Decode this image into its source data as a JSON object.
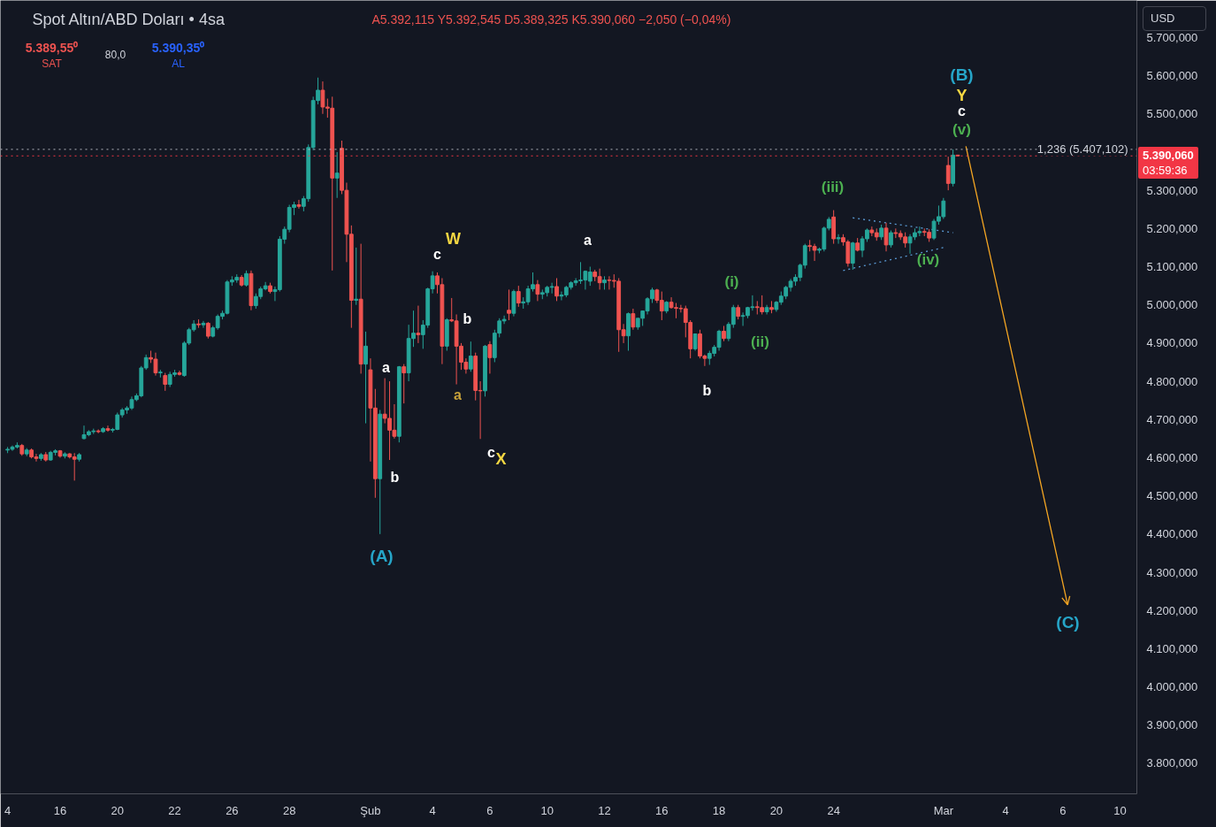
{
  "chart_data": {
    "type": "candlestick",
    "title": "Spot Altın/ABD Doları • 4sa",
    "subtitle": "A5.392,115 Y5.392,545 D5.389,325 K5.390,060 −2,050 (−0,04%)",
    "categories": [
      "4",
      null,
      null,
      null,
      null,
      null,
      null,
      null,
      null,
      null,
      null,
      "16",
      null,
      null,
      null,
      null,
      null,
      null,
      null,
      null,
      null,
      null,
      null,
      "20",
      null,
      null,
      null,
      null,
      null,
      null,
      null,
      null,
      null,
      null,
      null,
      "22",
      null,
      null,
      null,
      null,
      null,
      null,
      null,
      null,
      null,
      null,
      null,
      "26",
      null,
      null,
      null,
      null,
      null,
      null,
      null,
      null,
      null,
      null,
      null,
      "28",
      null,
      null,
      null,
      null,
      null,
      null,
      null,
      null,
      null,
      null,
      null,
      null,
      null,
      null,
      null,
      null,
      "Şub",
      null,
      null,
      null,
      null,
      null,
      null,
      null,
      null,
      null,
      null,
      null,
      null,
      "4",
      null,
      null,
      null,
      null,
      null,
      null,
      null,
      null,
      null,
      null,
      null,
      "6",
      null,
      null,
      null,
      null,
      null,
      null,
      null,
      null,
      null,
      null,
      null,
      "10",
      null,
      null,
      null,
      null,
      null,
      null,
      null,
      null,
      null,
      null,
      null,
      "12",
      null,
      null,
      null,
      null,
      null,
      null,
      null,
      null,
      null,
      null,
      null,
      "16",
      null,
      null,
      null,
      null,
      null,
      null,
      null,
      null,
      null,
      null,
      null,
      "18",
      null,
      null,
      null,
      null,
      null,
      null,
      null,
      null,
      null,
      null,
      null,
      "20",
      null,
      null,
      null,
      null,
      null,
      null,
      null,
      null,
      null,
      null,
      null,
      "24",
      null,
      null,
      null,
      null,
      null,
      null,
      null,
      null,
      null,
      null,
      null,
      null,
      null,
      null,
      null,
      null,
      null,
      null,
      null,
      null,
      null,
      null,
      "Mar",
      null,
      null,
      null,
      null,
      null,
      null,
      null,
      null,
      null,
      null,
      null,
      null,
      "4",
      null,
      null,
      null,
      null,
      null,
      null,
      null,
      null,
      null,
      null,
      null,
      "6",
      null,
      null,
      null,
      null,
      null,
      null,
      null,
      null,
      null,
      null,
      null,
      "10"
    ],
    "ohlc": [
      [
        4620,
        4628,
        4612,
        4622
      ],
      [
        4622,
        4632,
        4618,
        4628
      ],
      [
        4628,
        4640,
        4624,
        4632
      ],
      [
        4632,
        4636,
        4605,
        4610
      ],
      [
        4610,
        4625,
        4604,
        4620
      ],
      [
        4620,
        4624,
        4598,
        4602
      ],
      [
        4602,
        4610,
        4590,
        4598
      ],
      [
        4598,
        4612,
        4592,
        4608
      ],
      [
        4608,
        4615,
        4590,
        4594
      ],
      [
        4594,
        4618,
        4592,
        4614
      ],
      [
        4614,
        4622,
        4606,
        4618
      ],
      [
        4618,
        4620,
        4600,
        4604
      ],
      [
        4604,
        4614,
        4598,
        4610
      ],
      [
        4610,
        4612,
        4598,
        4602
      ],
      [
        4602,
        4612,
        4540,
        4596
      ],
      [
        4596,
        4612,
        4590,
        4608
      ],
      [
        4650,
        4684,
        4648,
        4660
      ],
      [
        4660,
        4672,
        4656,
        4668
      ],
      [
        4668,
        4676,
        4662,
        4670
      ],
      [
        4670,
        4674,
        4664,
        4668
      ],
      [
        4668,
        4680,
        4665,
        4676
      ],
      [
        4676,
        4684,
        4668,
        4672
      ],
      [
        4672,
        4678,
        4666,
        4674
      ],
      [
        4674,
        4718,
        4672,
        4712
      ],
      [
        4712,
        4730,
        4705,
        4725
      ],
      [
        4725,
        4735,
        4715,
        4730
      ],
      [
        4730,
        4760,
        4725,
        4752
      ],
      [
        4752,
        4768,
        4748,
        4762
      ],
      [
        4762,
        4840,
        4758,
        4835
      ],
      [
        4835,
        4870,
        4830,
        4862
      ],
      [
        4862,
        4880,
        4848,
        4858
      ],
      [
        4858,
        4875,
        4815,
        4822
      ],
      [
        4822,
        4830,
        4810,
        4824
      ],
      [
        4815,
        4822,
        4775,
        4792
      ],
      [
        4792,
        4825,
        4785,
        4818
      ],
      [
        4818,
        4830,
        4812,
        4822
      ],
      [
        4822,
        4828,
        4815,
        4818
      ],
      [
        4815,
        4905,
        4812,
        4900
      ],
      [
        4900,
        4940,
        4895,
        4935
      ],
      [
        4935,
        4960,
        4930,
        4950
      ],
      [
        4950,
        4962,
        4940,
        4948
      ],
      [
        4948,
        4958,
        4940,
        4952
      ],
      [
        4952,
        4955,
        4912,
        4918
      ],
      [
        4918,
        4945,
        4915,
        4940
      ],
      [
        4940,
        4975,
        4935,
        4970
      ],
      [
        4970,
        4985,
        4962,
        4978
      ],
      [
        4978,
        5065,
        4975,
        5060
      ],
      [
        5060,
        5075,
        5050,
        5065
      ],
      [
        5065,
        5080,
        5058,
        5072
      ],
      [
        5072,
        5078,
        5048,
        5052
      ],
      [
        5052,
        5090,
        5048,
        5082
      ],
      [
        5082,
        5090,
        4986,
        4998
      ],
      [
        4998,
        5030,
        4990,
        5022
      ],
      [
        5022,
        5048,
        5015,
        5042
      ],
      [
        5042,
        5060,
        5038,
        5050
      ],
      [
        5050,
        5058,
        5030,
        5035
      ],
      [
        5035,
        5048,
        5010,
        5040
      ],
      [
        5040,
        5180,
        5035,
        5172
      ],
      [
        5172,
        5205,
        5160,
        5198
      ],
      [
        5198,
        5262,
        5190,
        5255
      ],
      [
        5255,
        5270,
        5235,
        5262
      ],
      [
        5262,
        5275,
        5252,
        5258
      ],
      [
        5258,
        5285,
        5245,
        5278
      ],
      [
        5278,
        5420,
        5270,
        5412
      ],
      [
        5412,
        5545,
        5405,
        5535
      ],
      [
        5535,
        5595,
        5525,
        5562
      ],
      [
        5562,
        5585,
        5500,
        5518
      ],
      [
        5518,
        5540,
        5490,
        5515
      ],
      [
        5515,
        5545,
        5090,
        5332
      ],
      [
        5332,
        5400,
        5280,
        5345
      ],
      [
        5410,
        5430,
        5290,
        5300
      ],
      [
        5300,
        5320,
        5112,
        5185
      ],
      [
        5185,
        5208,
        4940,
        5012
      ],
      [
        5012,
        5150,
        5000,
        5015
      ],
      [
        5015,
        5160,
        4820,
        4845
      ],
      [
        4845,
        4930,
        4690,
        4892
      ],
      [
        4830,
        4860,
        4590,
        4730
      ],
      [
        4730,
        4780,
        4495,
        4545
      ],
      [
        4545,
        4725,
        4400,
        4714
      ],
      [
        4714,
        4808,
        4690,
        4703
      ],
      [
        4703,
        4800,
        4594,
        4672
      ],
      [
        4672,
        4740,
        4650,
        4656
      ],
      [
        4656,
        4840,
        4640,
        4838
      ],
      [
        4838,
        4845,
        4742,
        4822
      ],
      [
        4822,
        4948,
        4800,
        4912
      ],
      [
        4912,
        4985,
        4890,
        4926
      ],
      [
        4926,
        4998,
        4900,
        4922
      ],
      [
        4922,
        4960,
        4885,
        4947
      ],
      [
        4947,
        5045,
        4940,
        5042
      ],
      [
        5042,
        5088,
        5030,
        5076
      ],
      [
        5076,
        5085,
        5030,
        5053
      ],
      [
        5053,
        5070,
        4845,
        4892
      ],
      [
        4892,
        4965,
        4880,
        4961
      ],
      [
        4961,
        5018,
        4955,
        4958
      ],
      [
        4958,
        4975,
        4792,
        4892
      ],
      [
        4892,
        4900,
        4830,
        4850
      ],
      [
        4850,
        4860,
        4820,
        4832
      ],
      [
        4832,
        4904,
        4825,
        4866
      ],
      [
        4866,
        4875,
        4750,
        4776
      ],
      [
        4776,
        4800,
        4649,
        4775
      ],
      [
        4775,
        4895,
        4760,
        4892
      ],
      [
        4896,
        4905,
        4820,
        4862
      ],
      [
        4862,
        4935,
        4850,
        4926
      ],
      [
        4926,
        4965,
        4915,
        4958
      ],
      [
        4958,
        4972,
        4950,
        4962
      ],
      [
        4986,
        5040,
        4960,
        4978
      ],
      [
        4978,
        5040,
        4970,
        5035
      ],
      [
        5035,
        5050,
        4995,
        5005
      ],
      [
        5005,
        5020,
        4990,
        5008
      ],
      [
        5008,
        5050,
        5000,
        5042
      ],
      [
        5042,
        5085,
        5035,
        5053
      ],
      [
        5053,
        5065,
        5010,
        5028
      ],
      [
        5028,
        5040,
        5015,
        5032
      ],
      [
        5032,
        5050,
        5022,
        5046
      ],
      [
        5046,
        5058,
        5030,
        5048
      ],
      [
        5048,
        5070,
        5010,
        5023
      ],
      [
        5023,
        5035,
        5012,
        5026
      ],
      [
        5026,
        5050,
        5020,
        5046
      ],
      [
        5046,
        5062,
        5040,
        5058
      ],
      [
        5058,
        5070,
        5050,
        5063
      ],
      [
        5063,
        5112,
        5055,
        5065
      ],
      [
        5065,
        5090,
        5040,
        5088
      ],
      [
        5062,
        5100,
        5050,
        5086
      ],
      [
        5086,
        5092,
        5062,
        5074
      ],
      [
        5074,
        5095,
        5040,
        5058
      ],
      [
        5058,
        5075,
        5040,
        5065
      ],
      [
        5065,
        5075,
        5040,
        5064
      ],
      [
        5064,
        5080,
        5045,
        5062
      ],
      [
        5062,
        5070,
        4877,
        4935
      ],
      [
        4935,
        4950,
        4900,
        4919
      ],
      [
        4919,
        4980,
        4880,
        4977
      ],
      [
        4977,
        4990,
        4935,
        4942
      ],
      [
        4942,
        4965,
        4935,
        4965
      ],
      [
        4965,
        4985,
        4945,
        4984
      ],
      [
        4984,
        5020,
        4975,
        5016
      ],
      [
        5016,
        5045,
        5005,
        5039
      ],
      [
        5039,
        5042,
        5005,
        5012
      ],
      [
        5012,
        5035,
        4960,
        4984
      ],
      [
        4984,
        5010,
        4978,
        5007
      ],
      [
        5007,
        5020,
        4990,
        4993
      ],
      [
        4993,
        5005,
        4965,
        4991
      ],
      [
        4991,
        5000,
        4980,
        4990
      ],
      [
        4990,
        4998,
        4915,
        4954
      ],
      [
        4954,
        4960,
        4860,
        4885
      ],
      [
        4885,
        4925,
        4880,
        4924
      ],
      [
        4924,
        4935,
        4860,
        4866
      ],
      [
        4866,
        4870,
        4840,
        4860
      ],
      [
        4860,
        4880,
        4843,
        4873
      ],
      [
        4873,
        4895,
        4865,
        4889
      ],
      [
        4889,
        4935,
        4880,
        4931
      ],
      [
        4931,
        4945,
        4905,
        4912
      ],
      [
        4912,
        4955,
        4905,
        4949
      ],
      [
        4949,
        5000,
        4940,
        4993
      ],
      [
        4993,
        5000,
        4962,
        4970
      ],
      [
        4970,
        4980,
        4945,
        4972
      ],
      [
        4972,
        4995,
        4965,
        4993
      ],
      [
        4993,
        5025,
        4985,
        4995
      ],
      [
        4995,
        5010,
        4975,
        4993
      ],
      [
        4993,
        5025,
        4975,
        4982
      ],
      [
        4982,
        5000,
        4975,
        4993
      ],
      [
        4993,
        5010,
        4978,
        4988
      ],
      [
        4988,
        5010,
        4982,
        5007
      ],
      [
        5007,
        5035,
        5000,
        5023
      ],
      [
        5023,
        5050,
        5015,
        5046
      ],
      [
        5046,
        5068,
        5035,
        5062
      ],
      [
        5062,
        5080,
        5050,
        5072
      ],
      [
        5072,
        5108,
        5062,
        5104
      ],
      [
        5104,
        5160,
        5095,
        5155
      ],
      [
        5155,
        5170,
        5140,
        5153
      ],
      [
        5153,
        5160,
        5115,
        5143
      ],
      [
        5143,
        5150,
        5135,
        5146
      ],
      [
        5146,
        5205,
        5140,
        5201
      ],
      [
        5201,
        5230,
        5195,
        5224
      ],
      [
        5230,
        5248,
        5160,
        5173
      ],
      [
        5173,
        5185,
        5160,
        5176
      ],
      [
        5176,
        5185,
        5155,
        5165
      ],
      [
        5165,
        5170,
        5100,
        5109
      ],
      [
        5109,
        5165,
        5092,
        5162
      ],
      [
        5162,
        5175,
        5140,
        5143
      ],
      [
        5143,
        5180,
        5125,
        5173
      ],
      [
        5173,
        5200,
        5165,
        5196
      ],
      [
        5196,
        5205,
        5180,
        5189
      ],
      [
        5189,
        5200,
        5168,
        5178
      ],
      [
        5178,
        5210,
        5170,
        5201
      ],
      [
        5201,
        5215,
        5140,
        5157
      ],
      [
        5157,
        5195,
        5150,
        5189
      ],
      [
        5189,
        5200,
        5175,
        5187
      ],
      [
        5187,
        5195,
        5170,
        5178
      ],
      [
        5178,
        5190,
        5150,
        5162
      ],
      [
        5162,
        5185,
        5134,
        5178
      ],
      [
        5178,
        5200,
        5170,
        5189
      ],
      [
        5189,
        5205,
        5180,
        5192
      ],
      [
        5192,
        5200,
        5180,
        5190
      ],
      [
        5190,
        5198,
        5165,
        5175
      ],
      [
        5175,
        5225,
        5170,
        5219
      ],
      [
        5219,
        5260,
        5210,
        5231
      ],
      [
        5231,
        5280,
        5225,
        5272
      ],
      [
        5365,
        5388,
        5300,
        5318
      ],
      [
        5318,
        5407,
        5310,
        5392
      ],
      [
        5392.115,
        5392.545,
        5389.325,
        5390.06
      ],
      null,
      null,
      null,
      null,
      null,
      null,
      null,
      null,
      null,
      null,
      null,
      null,
      null,
      null,
      null,
      null,
      null,
      null,
      null,
      null,
      null,
      null,
      null,
      null,
      null,
      null,
      null,
      null,
      null,
      null,
      null,
      null,
      null,
      null
    ],
    "series": [
      {
        "type": "line",
        "color": "#5b9bd5",
        "line_style": "dotted",
        "values": [
          null,
          null,
          null,
          null,
          null,
          null,
          null,
          null,
          null,
          null,
          null,
          null,
          null,
          null,
          null,
          null,
          null,
          null,
          null,
          null,
          null,
          null,
          null,
          null,
          null,
          null,
          null,
          null,
          null,
          null,
          null,
          null,
          null,
          null,
          null,
          null,
          null,
          null,
          null,
          null,
          null,
          null,
          null,
          null,
          null,
          null,
          null,
          null,
          null,
          null,
          null,
          null,
          null,
          null,
          null,
          null,
          null,
          null,
          null,
          null,
          null,
          null,
          null,
          null,
          null,
          null,
          null,
          null,
          null,
          null,
          null,
          null,
          null,
          null,
          null,
          null,
          null,
          null,
          null,
          null,
          null,
          null,
          null,
          null,
          null,
          null,
          null,
          null,
          null,
          null,
          null,
          null,
          null,
          null,
          null,
          null,
          null,
          null,
          null,
          null,
          null,
          null,
          null,
          null,
          null,
          null,
          null,
          null,
          null,
          null,
          null,
          null,
          null,
          null,
          null,
          null,
          null,
          null,
          null,
          null,
          null,
          null,
          null,
          null,
          null,
          null,
          null,
          null,
          null,
          null,
          null,
          null,
          null,
          null,
          null,
          null,
          null,
          null,
          null,
          null,
          null,
          null,
          null,
          null,
          null,
          null,
          null,
          null,
          null,
          null,
          null,
          null,
          null,
          null,
          null,
          null,
          null,
          null,
          null,
          null,
          null,
          null,
          null,
          null,
          null,
          null,
          null,
          null,
          null,
          null,
          null,
          null,
          null,
          null,
          null,
          null,
          null,
          5228,
          null,
          null,
          null,
          null,
          null,
          null,
          null,
          null,
          null,
          null,
          null,
          null,
          null,
          null,
          null,
          null,
          null,
          null,
          null,
          null,
          5189,
          null,
          null,
          null,
          null,
          null,
          null,
          null,
          null,
          null,
          null,
          null,
          null,
          null,
          null,
          null,
          null,
          null,
          null,
          null,
          null,
          null,
          null,
          null,
          null,
          null,
          null,
          null,
          null,
          null,
          null,
          null,
          null,
          null,
          null,
          null
        ]
      },
      {
        "type": "line",
        "color": "#5b9bd5",
        "line_style": "dotted",
        "values": [
          null,
          null,
          null,
          null,
          null,
          null,
          null,
          null,
          null,
          null,
          null,
          null,
          null,
          null,
          null,
          null,
          null,
          null,
          null,
          null,
          null,
          null,
          null,
          null,
          null,
          null,
          null,
          null,
          null,
          null,
          null,
          null,
          null,
          null,
          null,
          null,
          null,
          null,
          null,
          null,
          null,
          null,
          null,
          null,
          null,
          null,
          null,
          null,
          null,
          null,
          null,
          null,
          null,
          null,
          null,
          null,
          null,
          null,
          null,
          null,
          null,
          null,
          null,
          null,
          null,
          null,
          null,
          null,
          null,
          null,
          null,
          null,
          null,
          null,
          null,
          null,
          null,
          null,
          null,
          null,
          null,
          null,
          null,
          null,
          null,
          null,
          null,
          null,
          null,
          null,
          null,
          null,
          null,
          null,
          null,
          null,
          null,
          null,
          null,
          null,
          null,
          null,
          null,
          null,
          null,
          null,
          null,
          null,
          null,
          null,
          null,
          null,
          null,
          null,
          null,
          null,
          null,
          null,
          null,
          null,
          null,
          null,
          null,
          null,
          null,
          null,
          null,
          null,
          null,
          null,
          null,
          null,
          null,
          null,
          null,
          null,
          null,
          null,
          null,
          null,
          null,
          null,
          null,
          null,
          null,
          null,
          null,
          null,
          null,
          null,
          null,
          null,
          null,
          null,
          null,
          null,
          null,
          null,
          null,
          null,
          null,
          null,
          null,
          null,
          null,
          null,
          null,
          null,
          null,
          null,
          null,
          null,
          null,
          null,
          null,
          5090,
          null,
          null,
          null,
          null,
          null,
          null,
          null,
          null,
          null,
          null,
          null,
          null,
          null,
          null,
          null,
          null,
          null,
          null,
          null,
          null,
          5150,
          null,
          null,
          null,
          null,
          null,
          null,
          null,
          null,
          null,
          null,
          null,
          null,
          null,
          null,
          null,
          null,
          null,
          null,
          null,
          null,
          null,
          null,
          null,
          null,
          null,
          null,
          null,
          null,
          null,
          null,
          null,
          null,
          null,
          null,
          null,
          null,
          null
        ]
      }
    ],
    "ylim": [
      3720,
      5797
    ],
    "yticks": [
      {
        "value": 3800,
        "label": "3.800,000"
      },
      {
        "value": 3900,
        "label": "3.900,000"
      },
      {
        "value": 4000,
        "label": "4.000,000"
      },
      {
        "value": 4100,
        "label": "4.100,000"
      },
      {
        "value": 4200,
        "label": "4.200,000"
      },
      {
        "value": 4300,
        "label": "4.300,000"
      },
      {
        "value": 4400,
        "label": "4.400,000"
      },
      {
        "value": 4500,
        "label": "4.500,000"
      },
      {
        "value": 4600,
        "label": "4.600,000"
      },
      {
        "value": 4700,
        "label": "4.700,000"
      },
      {
        "value": 4800,
        "label": "4.800,000"
      },
      {
        "value": 4900,
        "label": "4.900,000"
      },
      {
        "value": 5000,
        "label": "5.000,000"
      },
      {
        "value": 5100,
        "label": "5.100,000"
      },
      {
        "value": 5200,
        "label": "5.200,000"
      },
      {
        "value": 5300,
        "label": "5.300,000"
      },
      {
        "value": 5400,
        "label": null
      },
      {
        "value": 5500,
        "label": "5.500,000"
      },
      {
        "value": 5600,
        "label": "5.600,000"
      },
      {
        "value": 5700,
        "label": "5.700,000"
      }
    ],
    "ref_lines": [
      {
        "axis": "y",
        "value": 5390.06,
        "label": "5.390,060\n03:59:36",
        "color": "#f23645",
        "line_style": "dotted"
      },
      {
        "axis": "y",
        "value": 5407.102,
        "label": "1,236 (5.407,102)",
        "color": "#b2b5be",
        "line_style": "dotted"
      }
    ],
    "annotations": [
      "(B)",
      "Y",
      "c",
      "(v)",
      "(iii)",
      "(iv)",
      "(i)",
      "(ii)",
      "b",
      "a",
      "W",
      "c",
      "b",
      "a",
      "c",
      "X",
      "a",
      "b",
      "(A)",
      "(C)",
      "5.389,55⁰",
      "SAT",
      "80,0",
      "5.390,35⁰",
      "AL",
      "USD"
    ]
  }
}
